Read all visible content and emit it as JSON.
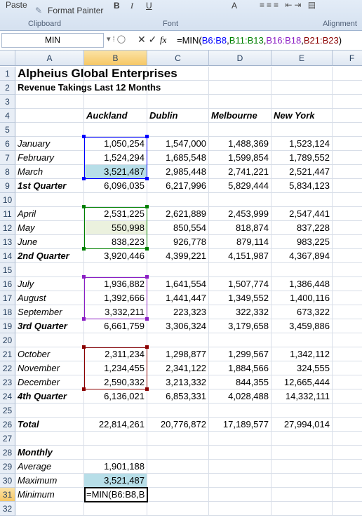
{
  "ribbon": {
    "paste": "Paste",
    "format_painter": "Format Painter",
    "bold": "B",
    "italic": "I",
    "underline": "U",
    "font_color": "A",
    "groups": [
      "Clipboard",
      "Font",
      "Alignment"
    ]
  },
  "formula_bar": {
    "name_box": "MIN",
    "fx": "fx",
    "formula": [
      {
        "text": "=MIN(",
        "color": "#000000"
      },
      {
        "text": "B6:B8",
        "color": "#0000ff"
      },
      {
        "text": ",",
        "color": "#000000"
      },
      {
        "text": "B11:B13",
        "color": "#008000"
      },
      {
        "text": ",",
        "color": "#000000"
      },
      {
        "text": "B16:B18",
        "color": "#8b1ec4"
      },
      {
        "text": ",",
        "color": "#000000"
      },
      {
        "text": "B21:B23",
        "color": "#8b0000"
      },
      {
        "text": ")",
        "color": "#000000"
      }
    ]
  },
  "columns": [
    "A",
    "B",
    "C",
    "D",
    "E",
    "F"
  ],
  "rows": [
    {
      "n": 1,
      "cells": {
        "A": "Alpheius Global Enterprises"
      }
    },
    {
      "n": 2,
      "cells": {
        "A": "Revenue Takings Last 12 Months"
      }
    },
    {
      "n": 3
    },
    {
      "n": 4,
      "cells": {
        "B": "Auckland",
        "C": "Dublin",
        "D": "Melbourne",
        "E": "New York"
      }
    },
    {
      "n": 5
    },
    {
      "n": 6,
      "cells": {
        "A": "January",
        "B": "1,050,254",
        "C": "1,547,000",
        "D": "1,488,369",
        "E": "1,523,124"
      }
    },
    {
      "n": 7,
      "cells": {
        "A": "February",
        "B": "1,524,294",
        "C": "1,685,548",
        "D": "1,599,854",
        "E": "1,789,552"
      }
    },
    {
      "n": 8,
      "cells": {
        "A": "March",
        "B": "3,521,487",
        "C": "2,985,448",
        "D": "2,741,221",
        "E": "2,521,447"
      }
    },
    {
      "n": 9,
      "cells": {
        "A": "1st Quarter",
        "B": "6,096,035",
        "C": "6,217,996",
        "D": "5,829,444",
        "E": "5,834,123"
      }
    },
    {
      "n": 10
    },
    {
      "n": 11,
      "cells": {
        "A": "April",
        "B": "2,531,225",
        "C": "2,621,889",
        "D": "2,453,999",
        "E": "2,547,441"
      }
    },
    {
      "n": 12,
      "cells": {
        "A": "May",
        "B": "550,998",
        "C": "850,554",
        "D": "818,874",
        "E": "837,228"
      }
    },
    {
      "n": 13,
      "cells": {
        "A": "June",
        "B": "838,223",
        "C": "926,778",
        "D": "879,114",
        "E": "983,225"
      }
    },
    {
      "n": 14,
      "cells": {
        "A": "2nd Quarter",
        "B": "3,920,446",
        "C": "4,399,221",
        "D": "4,151,987",
        "E": "4,367,894"
      }
    },
    {
      "n": 15
    },
    {
      "n": 16,
      "cells": {
        "A": "July",
        "B": "1,936,882",
        "C": "1,641,554",
        "D": "1,507,774",
        "E": "1,386,448"
      }
    },
    {
      "n": 17,
      "cells": {
        "A": "August",
        "B": "1,392,666",
        "C": "1,441,447",
        "D": "1,349,552",
        "E": "1,400,116"
      }
    },
    {
      "n": 18,
      "cells": {
        "A": "September",
        "B": "3,332,211",
        "C": "223,323",
        "D": "322,332",
        "E": "673,322"
      }
    },
    {
      "n": 19,
      "cells": {
        "A": "3rd Quarter",
        "B": "6,661,759",
        "C": "3,306,324",
        "D": "3,179,658",
        "E": "3,459,886"
      }
    },
    {
      "n": 20
    },
    {
      "n": 21,
      "cells": {
        "A": "October",
        "B": "2,311,234",
        "C": "1,298,877",
        "D": "1,299,567",
        "E": "1,342,112"
      }
    },
    {
      "n": 22,
      "cells": {
        "A": "November",
        "B": "1,234,455",
        "C": "2,341,122",
        "D": "1,884,566",
        "E": "324,555"
      }
    },
    {
      "n": 23,
      "cells": {
        "A": "December",
        "B": "2,590,332",
        "C": "3,213,332",
        "D": "844,355",
        "E": "12,665,444"
      }
    },
    {
      "n": 24,
      "cells": {
        "A": "4th Quarter",
        "B": "6,136,021",
        "C": "6,853,331",
        "D": "4,028,488",
        "E": "14,332,111"
      }
    },
    {
      "n": 25
    },
    {
      "n": 26,
      "cells": {
        "A": "Total",
        "B": "22,814,261",
        "C": "20,776,872",
        "D": "17,189,577",
        "E": "27,994,014"
      }
    },
    {
      "n": 27
    },
    {
      "n": 28,
      "cells": {
        "A": "Monthly"
      }
    },
    {
      "n": 29,
      "cells": {
        "A": "Average",
        "B": "1,901,188"
      }
    },
    {
      "n": 30,
      "cells": {
        "A": "Maximum",
        "B": "3,521,487"
      }
    },
    {
      "n": 31,
      "cells": {
        "A": "Minimum",
        "B": "=MIN(B6:B8,B"
      }
    },
    {
      "n": 32
    }
  ]
}
